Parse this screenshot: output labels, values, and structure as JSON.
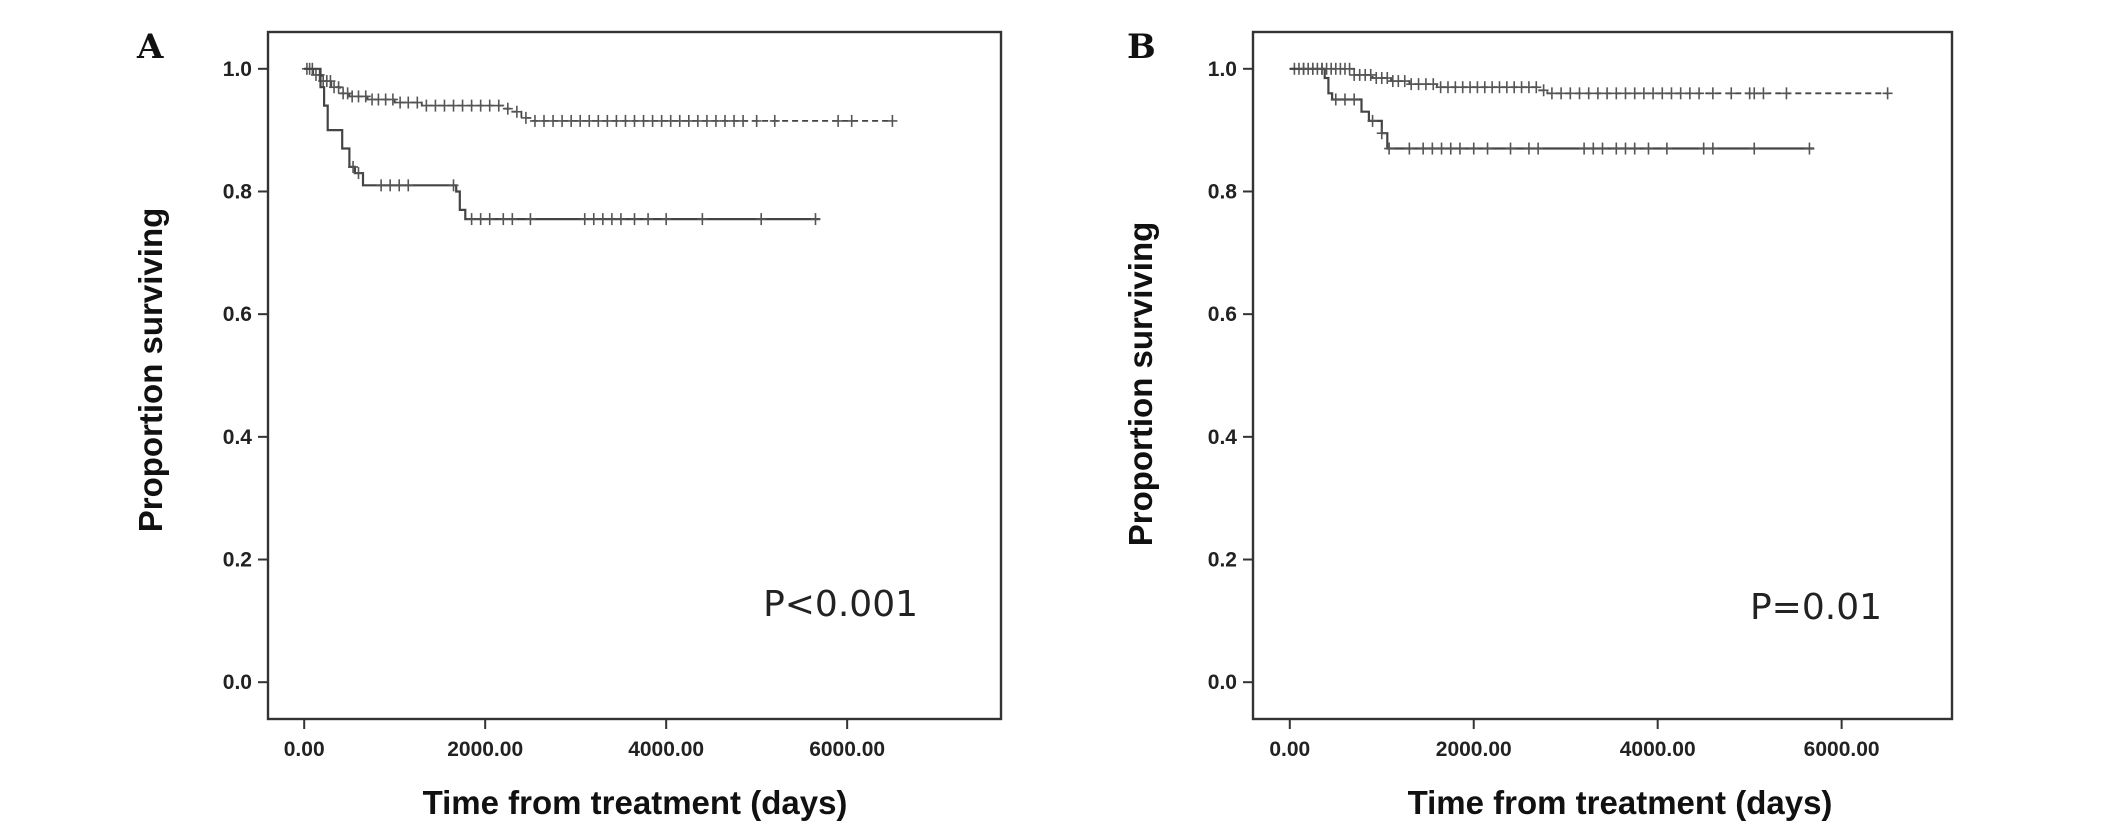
{
  "chart_data": [
    {
      "panel": "A",
      "type": "line",
      "xlabel": "Time from treatment (days)",
      "ylabel": "Proportion surviving",
      "annotation": "P<0.001",
      "xlim": [
        -400,
        7700
      ],
      "ylim": [
        -0.06,
        1.06
      ],
      "xticks": [
        "0.00",
        "2000.00",
        "4000.00",
        "6000.00"
      ],
      "yticks": [
        "0.0",
        "0.2",
        "0.4",
        "0.6",
        "0.8",
        "1.0"
      ],
      "grid": false,
      "series": [
        {
          "style": "dashed",
          "steps": [
            [
              0,
              1.0
            ],
            [
              100,
              0.99
            ],
            [
              200,
              0.98
            ],
            [
              300,
              0.97
            ],
            [
              400,
              0.96
            ],
            [
              500,
              0.955
            ],
            [
              700,
              0.95
            ],
            [
              1000,
              0.945
            ],
            [
              1300,
              0.94
            ],
            [
              2200,
              0.935
            ],
            [
              2300,
              0.93
            ],
            [
              2400,
              0.92
            ],
            [
              2500,
              0.915
            ],
            [
              6500,
              0.915
            ]
          ],
          "censored": [
            30,
            60,
            90,
            130,
            170,
            210,
            250,
            290,
            330,
            380,
            430,
            480,
            530,
            600,
            680,
            750,
            820,
            900,
            980,
            1060,
            1150,
            1250,
            1350,
            1450,
            1550,
            1650,
            1750,
            1850,
            1950,
            2050,
            2150,
            2250,
            2350,
            2450,
            2550,
            2650,
            2750,
            2850,
            2950,
            3050,
            3150,
            3250,
            3350,
            3450,
            3550,
            3650,
            3750,
            3850,
            3950,
            4050,
            4150,
            4250,
            4350,
            4450,
            4550,
            4650,
            4750,
            4850,
            5000,
            5200,
            5900,
            6050,
            6500
          ]
        },
        {
          "style": "solid",
          "steps": [
            [
              0,
              1.0
            ],
            [
              180,
              0.97
            ],
            [
              220,
              0.94
            ],
            [
              260,
              0.9
            ],
            [
              420,
              0.87
            ],
            [
              500,
              0.84
            ],
            [
              560,
              0.83
            ],
            [
              650,
              0.81
            ],
            [
              1680,
              0.8
            ],
            [
              1720,
              0.77
            ],
            [
              1780,
              0.755
            ],
            [
              5700,
              0.755
            ]
          ],
          "censored": [
            540,
            600,
            850,
            950,
            1050,
            1150,
            1650,
            1850,
            1950,
            2050,
            2200,
            2300,
            2500,
            3100,
            3200,
            3300,
            3400,
            3500,
            3650,
            3800,
            4000,
            4400,
            5050,
            5650
          ]
        }
      ]
    },
    {
      "panel": "B",
      "type": "line",
      "xlabel": "Time from treatment (days)",
      "ylabel": "Proportion surviving",
      "annotation": "P=0.01",
      "xlim": [
        -400,
        7200
      ],
      "ylim": [
        -0.06,
        1.06
      ],
      "xticks": [
        "0.00",
        "2000.00",
        "4000.00",
        "6000.00"
      ],
      "yticks": [
        "0.0",
        "0.2",
        "0.4",
        "0.6",
        "0.8",
        "1.0"
      ],
      "grid": false,
      "series": [
        {
          "style": "dashed",
          "steps": [
            [
              0,
              1.0
            ],
            [
              700,
              0.99
            ],
            [
              900,
              0.985
            ],
            [
              1100,
              0.98
            ],
            [
              1300,
              0.975
            ],
            [
              1600,
              0.97
            ],
            [
              2700,
              0.965
            ],
            [
              2800,
              0.96
            ],
            [
              6500,
              0.96
            ]
          ],
          "censored": [
            50,
            100,
            150,
            200,
            250,
            300,
            350,
            400,
            450,
            500,
            550,
            600,
            650,
            700,
            760,
            820,
            880,
            940,
            1000,
            1060,
            1120,
            1180,
            1250,
            1320,
            1400,
            1480,
            1560,
            1640,
            1720,
            1800,
            1880,
            1960,
            2040,
            2120,
            2200,
            2280,
            2360,
            2440,
            2520,
            2600,
            2680,
            2760,
            2850,
            2950,
            3050,
            3150,
            3250,
            3350,
            3450,
            3550,
            3650,
            3750,
            3850,
            3950,
            4050,
            4150,
            4250,
            4350,
            4450,
            4600,
            4800,
            5000,
            5050,
            5150,
            5400,
            6500
          ]
        },
        {
          "style": "solid",
          "steps": [
            [
              0,
              1.0
            ],
            [
              380,
              0.985
            ],
            [
              420,
              0.96
            ],
            [
              460,
              0.95
            ],
            [
              780,
              0.93
            ],
            [
              860,
              0.915
            ],
            [
              1000,
              0.895
            ],
            [
              1060,
              0.87
            ],
            [
              5700,
              0.87
            ]
          ],
          "censored": [
            150,
            250,
            350,
            500,
            600,
            700,
            900,
            1000,
            1080,
            1300,
            1450,
            1550,
            1650,
            1750,
            1850,
            2000,
            2150,
            2400,
            2600,
            2700,
            3200,
            3300,
            3400,
            3550,
            3650,
            3750,
            3900,
            4100,
            4500,
            4600,
            5050,
            5650
          ]
        }
      ]
    }
  ]
}
